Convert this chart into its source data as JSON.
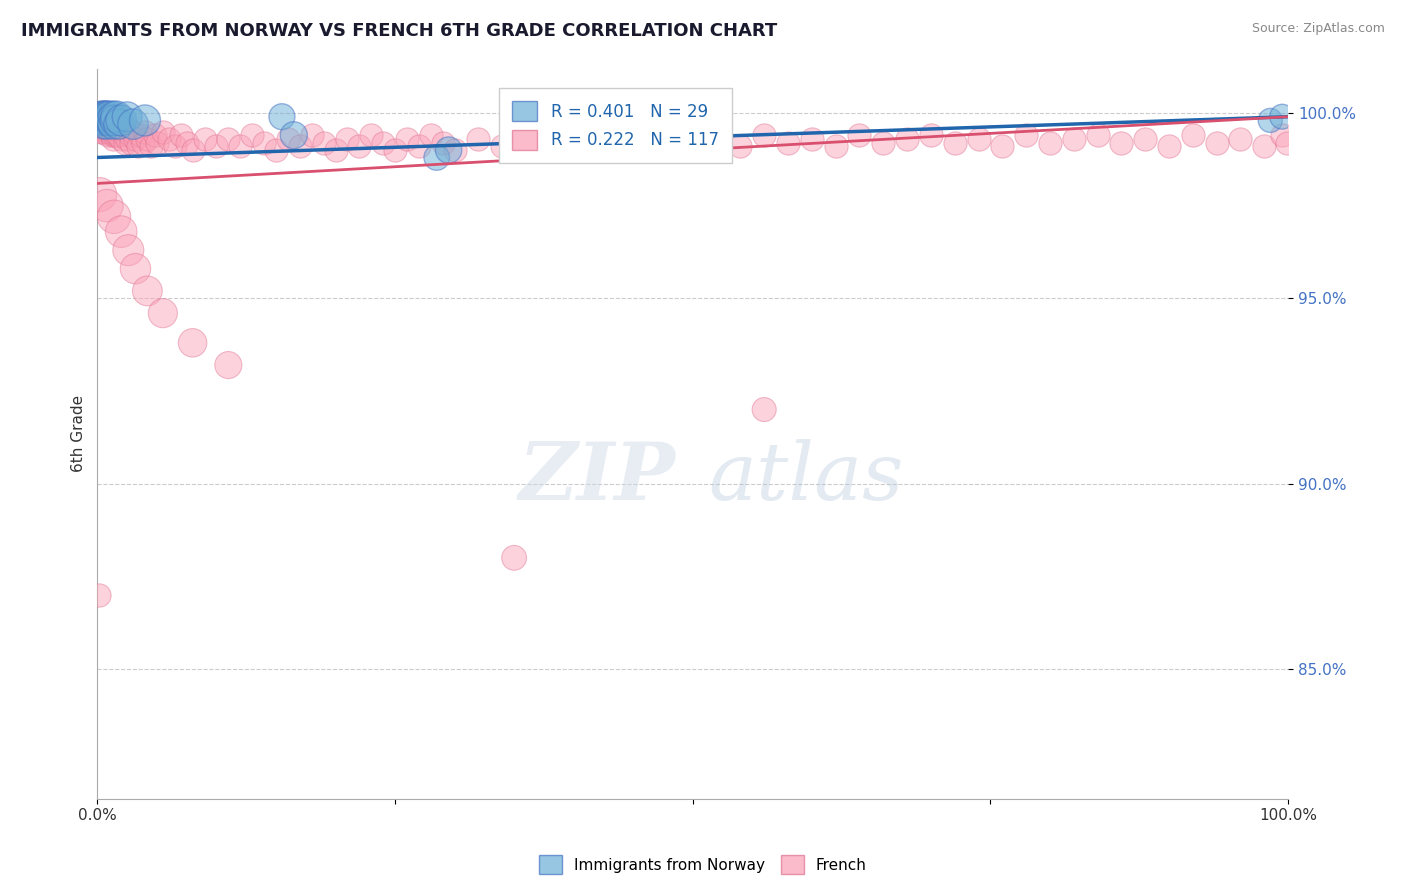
{
  "title": "IMMIGRANTS FROM NORWAY VS FRENCH 6TH GRADE CORRELATION CHART",
  "source": "Source: ZipAtlas.com",
  "ylabel": "6th Grade",
  "legend_labels": [
    "Immigrants from Norway",
    "French"
  ],
  "legend_r_n": [
    {
      "R": 0.401,
      "N": 29,
      "color": "#6baed6"
    },
    {
      "R": 0.222,
      "N": 117,
      "color": "#fa9fb5"
    }
  ],
  "xmin": 0.0,
  "xmax": 1.0,
  "ymin": 0.815,
  "ymax": 1.012,
  "yticks": [
    0.85,
    0.9,
    0.95,
    1.0
  ],
  "ytick_labels": [
    "85.0%",
    "90.0%",
    "95.0%",
    "100.0%"
  ],
  "xticks": [
    0.0,
    0.25,
    0.5,
    0.75,
    1.0
  ],
  "xtick_labels": [
    "0.0%",
    "",
    "",
    "",
    "100.0%"
  ],
  "grid_color": "#cccccc",
  "blue_color": "#6baed6",
  "pink_color": "#fa9fb5",
  "blue_edge_color": "#4472c4",
  "pink_edge_color": "#e07090",
  "blue_line_color": "#2166ac",
  "pink_line_color": "#d94f6e",
  "blue_trend_x": [
    0.0,
    1.0
  ],
  "blue_trend_y": [
    0.988,
    0.999
  ],
  "pink_trend_x": [
    0.0,
    1.0
  ],
  "pink_trend_y": [
    0.981,
    0.999
  ],
  "blue_scatter_x": [
    0.003,
    0.004,
    0.005,
    0.005,
    0.006,
    0.006,
    0.007,
    0.007,
    0.008,
    0.008,
    0.009,
    0.01,
    0.011,
    0.012,
    0.013,
    0.014,
    0.015,
    0.016,
    0.018,
    0.02,
    0.025,
    0.03,
    0.04,
    0.155,
    0.165,
    0.285,
    0.295,
    0.985,
    0.995
  ],
  "blue_scatter_y": [
    0.999,
    0.998,
    0.999,
    0.997,
    0.999,
    0.998,
    0.999,
    0.998,
    0.999,
    0.997,
    0.999,
    0.998,
    0.999,
    0.998,
    0.997,
    0.999,
    0.998,
    0.999,
    0.997,
    0.998,
    0.999,
    0.997,
    0.998,
    0.999,
    0.994,
    0.988,
    0.99,
    0.998,
    0.999
  ],
  "blue_scatter_sizes": [
    500,
    480,
    520,
    450,
    500,
    480,
    510,
    460,
    490,
    470,
    500,
    480,
    510,
    490,
    460,
    500,
    480,
    510,
    470,
    490,
    460,
    480,
    500,
    350,
    380,
    340,
    360,
    300,
    320
  ],
  "pink_scatter_x": [
    0.001,
    0.002,
    0.003,
    0.003,
    0.004,
    0.004,
    0.005,
    0.005,
    0.006,
    0.006,
    0.007,
    0.007,
    0.008,
    0.008,
    0.009,
    0.009,
    0.01,
    0.01,
    0.011,
    0.011,
    0.012,
    0.012,
    0.013,
    0.013,
    0.014,
    0.014,
    0.015,
    0.015,
    0.016,
    0.016,
    0.017,
    0.018,
    0.019,
    0.02,
    0.021,
    0.022,
    0.023,
    0.024,
    0.025,
    0.026,
    0.027,
    0.028,
    0.03,
    0.032,
    0.034,
    0.036,
    0.038,
    0.04,
    0.042,
    0.045,
    0.048,
    0.05,
    0.055,
    0.06,
    0.065,
    0.07,
    0.075,
    0.08,
    0.09,
    0.1,
    0.11,
    0.12,
    0.13,
    0.14,
    0.15,
    0.16,
    0.17,
    0.18,
    0.19,
    0.2,
    0.21,
    0.22,
    0.23,
    0.24,
    0.25,
    0.26,
    0.27,
    0.28,
    0.29,
    0.3,
    0.32,
    0.34,
    0.36,
    0.38,
    0.4,
    0.42,
    0.44,
    0.46,
    0.48,
    0.5,
    0.52,
    0.54,
    0.56,
    0.58,
    0.6,
    0.62,
    0.64,
    0.66,
    0.68,
    0.7,
    0.72,
    0.74,
    0.76,
    0.78,
    0.8,
    0.82,
    0.84,
    0.86,
    0.88,
    0.9,
    0.92,
    0.94,
    0.96,
    0.98,
    0.995,
    0.999,
    0.001
  ],
  "pink_scatter_y": [
    0.996,
    0.997,
    0.998,
    0.995,
    0.997,
    0.996,
    0.998,
    0.995,
    0.997,
    0.999,
    0.996,
    0.997,
    0.995,
    0.998,
    0.996,
    0.994,
    0.997,
    0.995,
    0.998,
    0.996,
    0.994,
    0.997,
    0.995,
    0.993,
    0.996,
    0.994,
    0.997,
    0.995,
    0.994,
    0.996,
    0.994,
    0.996,
    0.995,
    0.993,
    0.996,
    0.994,
    0.992,
    0.995,
    0.993,
    0.996,
    0.994,
    0.992,
    0.995,
    0.993,
    0.991,
    0.994,
    0.992,
    0.995,
    0.993,
    0.991,
    0.994,
    0.992,
    0.995,
    0.993,
    0.991,
    0.994,
    0.992,
    0.99,
    0.993,
    0.991,
    0.993,
    0.991,
    0.994,
    0.992,
    0.99,
    0.993,
    0.991,
    0.994,
    0.992,
    0.99,
    0.993,
    0.991,
    0.994,
    0.992,
    0.99,
    0.993,
    0.991,
    0.994,
    0.992,
    0.99,
    0.993,
    0.991,
    0.994,
    0.992,
    0.99,
    0.993,
    0.991,
    0.994,
    0.992,
    0.99,
    0.993,
    0.991,
    0.994,
    0.992,
    0.993,
    0.991,
    0.994,
    0.992,
    0.993,
    0.994,
    0.992,
    0.993,
    0.991,
    0.994,
    0.992,
    0.993,
    0.994,
    0.992,
    0.993,
    0.991,
    0.994,
    0.992,
    0.993,
    0.991,
    0.994,
    0.992,
    0.87
  ],
  "pink_scatter_sizes_base": 280,
  "pink_outlier_x": [
    0.002,
    0.008,
    0.014,
    0.02,
    0.026,
    0.032,
    0.042,
    0.055,
    0.08,
    0.11,
    0.35,
    0.56
  ],
  "pink_outlier_y": [
    0.978,
    0.975,
    0.972,
    0.968,
    0.963,
    0.958,
    0.952,
    0.946,
    0.938,
    0.932,
    0.88,
    0.92
  ],
  "pink_outlier_sizes": [
    600,
    550,
    580,
    520,
    500,
    480,
    460,
    440,
    420,
    380,
    320,
    300
  ]
}
